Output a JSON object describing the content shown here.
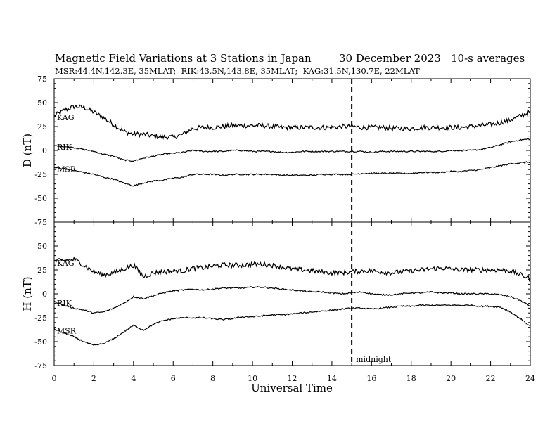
{
  "header": {
    "title": "Magnetic Field Variations at 3 Stations in Japan",
    "date": "30 December 2023",
    "averaging": "10-s averages",
    "stations": "MSR:44.4N,142.3E, 35MLAT;  RIK:43.5N,143.8E, 35MLAT;  KAG:31.5N,130.7E, 22MLAT"
  },
  "annotation": {
    "midnight_label": "midnight",
    "midnight_ut": 15
  },
  "chart_data": [
    {
      "type": "line",
      "panel": "D",
      "ylabel": "D (nT)",
      "xlabel": "",
      "xlim": [
        0,
        24
      ],
      "ylim": [
        -75,
        75
      ],
      "yticks": [
        -75,
        -50,
        -25,
        0,
        25,
        50,
        75
      ],
      "x": [
        0,
        0.5,
        1,
        1.5,
        2,
        2.5,
        3,
        3.5,
        4,
        4.5,
        5,
        5.5,
        6,
        6.5,
        7,
        7.5,
        8,
        8.5,
        9,
        9.5,
        10,
        10.5,
        11,
        11.5,
        12,
        12.5,
        13,
        13.5,
        14,
        14.5,
        15,
        15.5,
        16,
        16.5,
        17,
        17.5,
        18,
        18.5,
        19,
        19.5,
        20,
        20.5,
        21,
        21.5,
        22,
        22.5,
        23,
        23.5,
        24
      ],
      "series": [
        {
          "name": "KAG",
          "noise": 2.5,
          "values": [
            36,
            42,
            46,
            45,
            40,
            34,
            27,
            20,
            17,
            17,
            15,
            14,
            14,
            17,
            23,
            24,
            24,
            25,
            26,
            26,
            26,
            26,
            25,
            24,
            24,
            24,
            24,
            24,
            24,
            25,
            25,
            24,
            24,
            24,
            23,
            23,
            23,
            24,
            24,
            24,
            24,
            24,
            25,
            26,
            27,
            29,
            32,
            36,
            40
          ]
        },
        {
          "name": "RIK",
          "noise": 0.7,
          "values": [
            5,
            4,
            3,
            1,
            -1,
            -4,
            -6,
            -10,
            -11,
            -8,
            -6,
            -4,
            -3,
            -2,
            0,
            -1,
            -1,
            -1,
            0,
            0,
            -1,
            -1,
            -1,
            -2,
            -2,
            -1,
            -1,
            -1,
            -1,
            -1,
            -1,
            -1,
            -2,
            -1,
            -1,
            -1,
            -1,
            -1,
            -1,
            -1,
            0,
            0,
            0,
            1,
            3,
            6,
            9,
            11,
            12
          ]
        },
        {
          "name": "MSR",
          "noise": 0.7,
          "values": [
            -18,
            -19,
            -21,
            -23,
            -25,
            -28,
            -30,
            -34,
            -37,
            -34,
            -32,
            -31,
            -29,
            -28,
            -25,
            -25,
            -25,
            -26,
            -25,
            -25,
            -25,
            -25,
            -25,
            -26,
            -26,
            -26,
            -26,
            -25,
            -25,
            -25,
            -25,
            -24,
            -24,
            -24,
            -24,
            -24,
            -24,
            -23,
            -23,
            -23,
            -22,
            -22,
            -21,
            -20,
            -18,
            -16,
            -14,
            -13,
            -12
          ]
        }
      ]
    },
    {
      "type": "line",
      "panel": "H",
      "ylabel": "H (nT)",
      "xlabel": "Universal Time",
      "xlim": [
        0,
        24
      ],
      "ylim": [
        -75,
        75
      ],
      "yticks": [
        -75,
        -50,
        -25,
        0,
        25,
        50,
        75
      ],
      "xticks": [
        0,
        2,
        4,
        6,
        8,
        10,
        12,
        14,
        16,
        18,
        20,
        22,
        24
      ],
      "x": [
        0,
        0.5,
        1,
        1.5,
        2,
        2.5,
        3,
        3.5,
        4,
        4.5,
        5,
        5.5,
        6,
        6.5,
        7,
        7.5,
        8,
        8.5,
        9,
        9.5,
        10,
        10.5,
        11,
        11.5,
        12,
        12.5,
        13,
        13.5,
        14,
        14.5,
        15,
        15.5,
        16,
        16.5,
        17,
        17.5,
        18,
        18.5,
        19,
        19.5,
        20,
        20.5,
        21,
        21.5,
        22,
        22.5,
        23,
        23.5,
        24
      ],
      "series": [
        {
          "name": "KAG",
          "noise": 2.5,
          "values": [
            34,
            35,
            36,
            30,
            23,
            20,
            22,
            26,
            30,
            18,
            22,
            23,
            24,
            24,
            27,
            27,
            29,
            30,
            30,
            30,
            31,
            31,
            30,
            28,
            26,
            25,
            24,
            23,
            22,
            22,
            23,
            24,
            24,
            23,
            22,
            23,
            24,
            25,
            26,
            27,
            26,
            25,
            25,
            25,
            25,
            25,
            24,
            20,
            16
          ]
        },
        {
          "name": "RIK",
          "noise": 0.7,
          "values": [
            -8,
            -12,
            -15,
            -17,
            -20,
            -19,
            -15,
            -10,
            -3,
            -5,
            -2,
            1,
            3,
            4,
            5,
            4,
            5,
            6,
            6,
            6,
            7,
            7,
            6,
            5,
            4,
            3,
            2,
            2,
            1,
            0,
            1,
            2,
            0,
            -1,
            -1,
            0,
            1,
            1,
            2,
            1,
            1,
            0,
            0,
            0,
            0,
            -1,
            -3,
            -7,
            -13
          ]
        },
        {
          "name": "MSR",
          "noise": 0.7,
          "values": [
            -37,
            -41,
            -45,
            -50,
            -54,
            -52,
            -47,
            -40,
            -33,
            -38,
            -32,
            -28,
            -26,
            -25,
            -25,
            -25,
            -26,
            -27,
            -26,
            -24,
            -24,
            -23,
            -22,
            -22,
            -21,
            -20,
            -19,
            -18,
            -17,
            -16,
            -15,
            -15,
            -16,
            -15,
            -14,
            -13,
            -13,
            -12,
            -12,
            -12,
            -12,
            -12,
            -12,
            -13,
            -13,
            -14,
            -19,
            -26,
            -34
          ]
        }
      ]
    }
  ]
}
